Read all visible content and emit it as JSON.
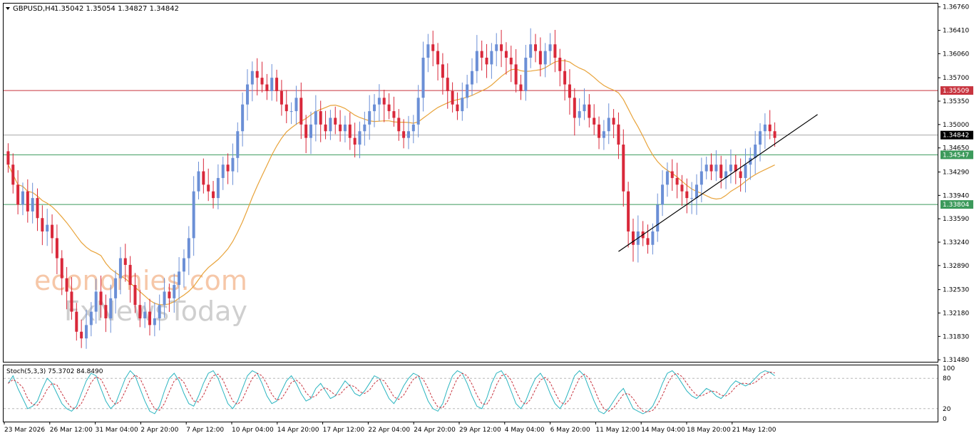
{
  "header": {
    "symbol": "GBPUSD,H4",
    "ohlc": "1.35042 1.35054 1.34827 1.34842",
    "stoch_label": "Stoch(5,3,3) 75.3702 84.8490"
  },
  "watermark": {
    "line1": "economies.com",
    "line2": "FxNewsToday"
  },
  "colors": {
    "bull": "#6b8fd6",
    "bear": "#d9283a",
    "ma": "#e8a33a",
    "resistance": "#c8343f",
    "support": "#3c9a5b",
    "current": "#a8a8a8",
    "stoch_main": "#2bb5c0",
    "stoch_signal": "#c8343f"
  },
  "chart_data": {
    "type": "candlestick",
    "price_axis": {
      "ylim": [
        1.3145,
        1.3681
      ],
      "ticks": [
        "1.36760",
        "1.36410",
        "1.36060",
        "1.35700",
        "1.35350",
        "1.35000",
        "1.34650",
        "1.34290",
        "1.33940",
        "1.33590",
        "1.33240",
        "1.32890",
        "1.32530",
        "1.32180",
        "1.31830",
        "1.31480"
      ]
    },
    "time_axis": [
      "23 Mar 2026",
      "26 Mar 12:00",
      "31 Mar 04:00",
      "2 Apr 20:00",
      "7 Apr 12:00",
      "10 Apr 04:00",
      "14 Apr 20:00",
      "17 Apr 12:00",
      "22 Apr 04:00",
      "24 Apr 20:00",
      "29 Apr 12:00",
      "4 May 04:00",
      "6 May 20:00",
      "11 May 12:00",
      "14 May 04:00",
      "18 May 20:00",
      "21 May 12:00"
    ],
    "levels": {
      "resistance": "1.35509",
      "current": "1.34842",
      "support1": "1.34547",
      "support2": "1.33804"
    },
    "closes": [
      1.344,
      1.341,
      1.338,
      1.34,
      1.337,
      1.339,
      1.336,
      1.334,
      1.335,
      1.333,
      1.33,
      1.327,
      1.325,
      1.322,
      1.319,
      1.318,
      1.32,
      1.322,
      1.325,
      1.323,
      1.321,
      1.324,
      1.327,
      1.33,
      1.329,
      1.326,
      1.323,
      1.321,
      1.322,
      1.32,
      1.321,
      1.323,
      1.325,
      1.324,
      1.326,
      1.328,
      1.33,
      1.333,
      1.34,
      1.343,
      1.341,
      1.34,
      1.339,
      1.342,
      1.344,
      1.343,
      1.345,
      1.349,
      1.353,
      1.356,
      1.358,
      1.357,
      1.356,
      1.355,
      1.357,
      1.355,
      1.353,
      1.352,
      1.352,
      1.354,
      1.35,
      1.348,
      1.35,
      1.352,
      1.35,
      1.349,
      1.351,
      1.35,
      1.349,
      1.35,
      1.348,
      1.347,
      1.349,
      1.35,
      1.352,
      1.353,
      1.354,
      1.353,
      1.352,
      1.351,
      1.349,
      1.348,
      1.349,
      1.35,
      1.354,
      1.36,
      1.362,
      1.361,
      1.359,
      1.357,
      1.355,
      1.353,
      1.352,
      1.354,
      1.356,
      1.358,
      1.361,
      1.36,
      1.359,
      1.361,
      1.362,
      1.361,
      1.36,
      1.359,
      1.356,
      1.355,
      1.36,
      1.362,
      1.361,
      1.359,
      1.361,
      1.362,
      1.36,
      1.358,
      1.356,
      1.354,
      1.351,
      1.352,
      1.353,
      1.351,
      1.35,
      1.348,
      1.349,
      1.351,
      1.35,
      1.347,
      1.34,
      1.334,
      1.332,
      1.334,
      1.333,
      1.332,
      1.334,
      1.338,
      1.341,
      1.343,
      1.342,
      1.341,
      1.34,
      1.339,
      1.339,
      1.341,
      1.343,
      1.344,
      1.343,
      1.344,
      1.342,
      1.343,
      1.344,
      1.343,
      1.342,
      1.344,
      1.345,
      1.347,
      1.349,
      1.35,
      1.349,
      1.348
    ],
    "moving_average_visible": true,
    "trendline_from": [
      "14 May 04:00",
      1.331
    ],
    "trendline_to": [
      "21 May 12:00+",
      1.3515
    ],
    "stochastic": {
      "levels": [
        "100",
        "80",
        "20",
        "0"
      ],
      "k": [
        70,
        85,
        60,
        40,
        20,
        25,
        35,
        60,
        80,
        70,
        50,
        30,
        20,
        15,
        25,
        50,
        75,
        90,
        85,
        60,
        35,
        20,
        30,
        55,
        80,
        95,
        85,
        60,
        35,
        15,
        10,
        25,
        55,
        80,
        90,
        75,
        50,
        30,
        25,
        45,
        70,
        90,
        95,
        80,
        55,
        30,
        20,
        35,
        60,
        85,
        95,
        90,
        70,
        45,
        30,
        35,
        55,
        75,
        85,
        70,
        50,
        35,
        40,
        60,
        70,
        55,
        40,
        45,
        60,
        75,
        65,
        50,
        45,
        55,
        70,
        85,
        80,
        60,
        40,
        30,
        45,
        65,
        80,
        90,
        85,
        60,
        35,
        20,
        15,
        30,
        60,
        85,
        95,
        90,
        70,
        45,
        25,
        20,
        40,
        70,
        90,
        95,
        80,
        55,
        30,
        20,
        35,
        60,
        80,
        90,
        75,
        50,
        30,
        20,
        35,
        60,
        85,
        95,
        85,
        60,
        35,
        15,
        10,
        20,
        35,
        50,
        60,
        40,
        20,
        15,
        10,
        15,
        25,
        45,
        70,
        90,
        95,
        85,
        70,
        55,
        45,
        40,
        50,
        60,
        55,
        45,
        40,
        50,
        65,
        75,
        70,
        65,
        70,
        80,
        90,
        95,
        92,
        85
      ]
    }
  }
}
